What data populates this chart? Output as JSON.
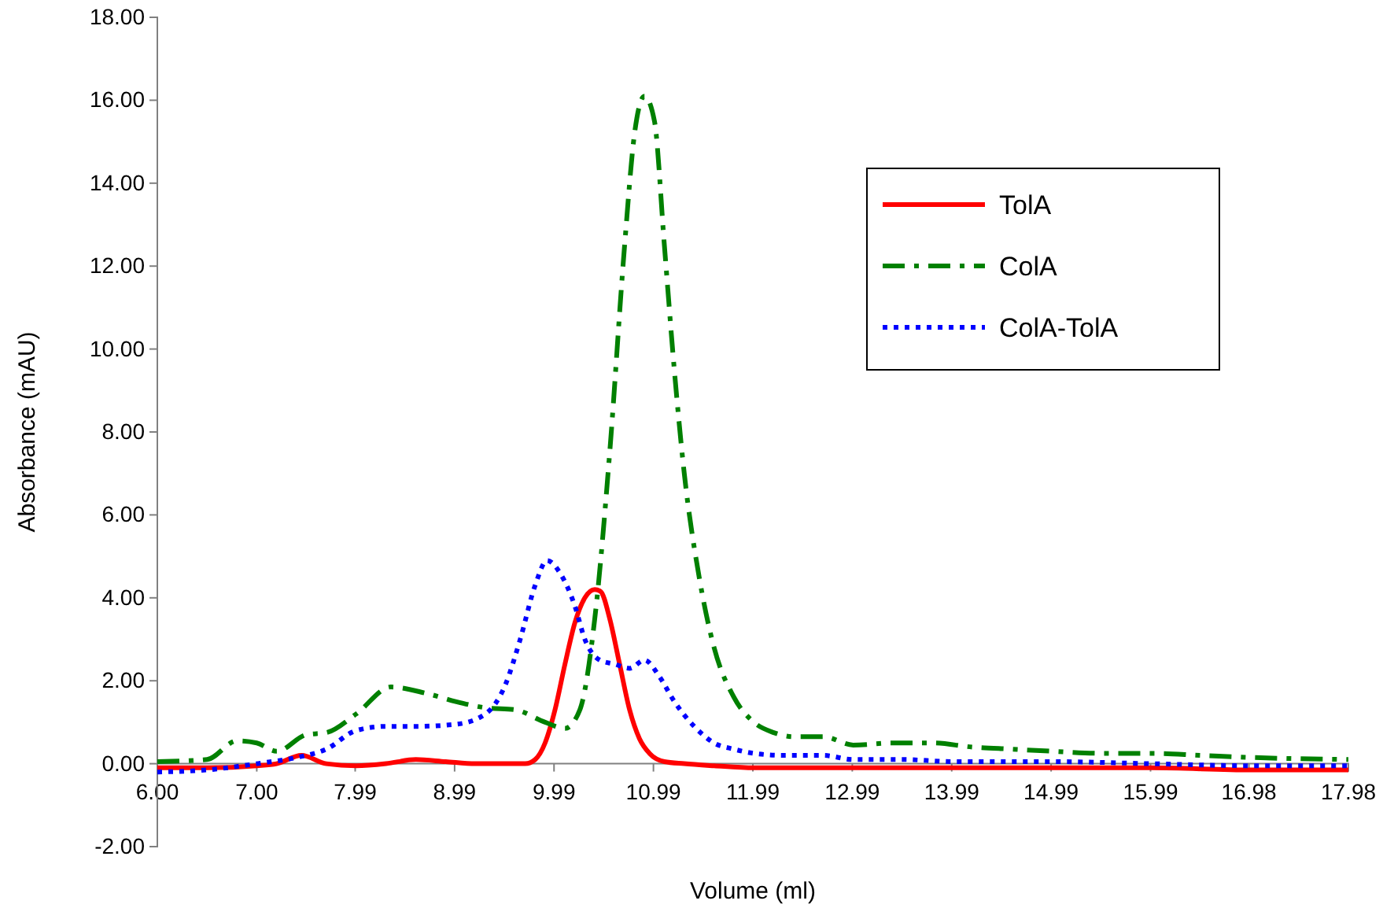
{
  "chart_data": {
    "type": "line",
    "xlabel": "Volume (ml)",
    "ylabel": "Absorbance (mAU)",
    "xlim": [
      6.0,
      17.98
    ],
    "xticks": [
      {
        "value": 6.0,
        "label": "6.00"
      },
      {
        "value": 7.0,
        "label": "7.00"
      },
      {
        "value": 7.99,
        "label": "7.99"
      },
      {
        "value": 8.99,
        "label": "8.99"
      },
      {
        "value": 9.99,
        "label": "9.99"
      },
      {
        "value": 10.99,
        "label": "10.99"
      },
      {
        "value": 11.99,
        "label": "11.99"
      },
      {
        "value": 12.99,
        "label": "12.99"
      },
      {
        "value": 13.99,
        "label": "13.99"
      },
      {
        "value": 14.99,
        "label": "14.99"
      },
      {
        "value": 15.99,
        "label": "15.99"
      },
      {
        "value": 16.98,
        "label": "16.98"
      },
      {
        "value": 17.98,
        "label": "17.98"
      }
    ],
    "ylim": [
      -2,
      18
    ],
    "yticks": [
      {
        "value": -2,
        "label": "-2.00"
      },
      {
        "value": 0,
        "label": "0.00"
      },
      {
        "value": 2,
        "label": "2.00"
      },
      {
        "value": 4,
        "label": "4.00"
      },
      {
        "value": 6,
        "label": "6.00"
      },
      {
        "value": 8,
        "label": "8.00"
      },
      {
        "value": 10,
        "label": "10.00"
      },
      {
        "value": 12,
        "label": "12.00"
      },
      {
        "value": 14,
        "label": "14.00"
      },
      {
        "value": 16,
        "label": "16.00"
      },
      {
        "value": 18,
        "label": "18.00"
      }
    ],
    "grid": false,
    "legend": "top right",
    "marker": "none",
    "series": [
      {
        "name": "TolA",
        "color": "#ff0000",
        "line_style": "solid",
        "x": [
          6.0,
          6.5,
          7.0,
          7.2,
          7.45,
          7.7,
          8.0,
          8.3,
          8.6,
          8.9,
          9.2,
          9.5,
          9.7,
          9.8,
          9.9,
          10.0,
          10.1,
          10.2,
          10.3,
          10.4,
          10.46,
          10.55,
          10.65,
          10.75,
          10.85,
          10.95,
          11.1,
          11.3,
          11.6,
          12.0,
          13.0,
          14.0,
          15.0,
          16.0,
          17.0,
          17.98
        ],
        "values": [
          -0.1,
          -0.1,
          -0.05,
          0.0,
          0.2,
          0.0,
          -0.05,
          0.0,
          0.1,
          0.05,
          0.0,
          0.0,
          0.0,
          0.1,
          0.5,
          1.3,
          2.4,
          3.4,
          4.0,
          4.2,
          4.15,
          3.5,
          2.4,
          1.3,
          0.6,
          0.25,
          0.05,
          0.0,
          -0.05,
          -0.1,
          -0.1,
          -0.1,
          -0.1,
          -0.1,
          -0.15,
          -0.15
        ]
      },
      {
        "name": "ColA",
        "color": "#008000",
        "line_style": "dashdot",
        "x": [
          6.0,
          6.5,
          6.8,
          7.0,
          7.2,
          7.5,
          7.7,
          8.0,
          8.35,
          8.7,
          9.0,
          9.3,
          9.6,
          9.9,
          10.1,
          10.25,
          10.4,
          10.55,
          10.7,
          10.8,
          10.9,
          11.0,
          11.1,
          11.2,
          11.3,
          11.45,
          11.6,
          11.8,
          12.0,
          12.2,
          12.4,
          12.7,
          13.0,
          13.4,
          13.8,
          14.2,
          14.6,
          15.0,
          15.5,
          16.0,
          16.5,
          17.0,
          17.98
        ],
        "values": [
          0.05,
          0.1,
          0.55,
          0.5,
          0.3,
          0.7,
          0.75,
          1.2,
          1.85,
          1.7,
          1.5,
          1.35,
          1.3,
          1.0,
          0.85,
          1.3,
          3.5,
          7.5,
          12.5,
          15.2,
          16.1,
          15.5,
          12.5,
          9.5,
          7.0,
          4.5,
          2.8,
          1.6,
          1.0,
          0.75,
          0.65,
          0.65,
          0.45,
          0.5,
          0.5,
          0.4,
          0.35,
          0.3,
          0.25,
          0.25,
          0.2,
          0.15,
          0.1
        ]
      },
      {
        "name": "ColA-TolA",
        "color": "#0000ff",
        "line_style": "dotted",
        "x": [
          6.0,
          6.5,
          7.0,
          7.4,
          7.7,
          8.0,
          8.3,
          8.6,
          9.0,
          9.3,
          9.5,
          9.65,
          9.8,
          9.92,
          10.05,
          10.2,
          10.3,
          10.45,
          10.6,
          10.75,
          10.9,
          11.05,
          11.2,
          11.4,
          11.6,
          11.8,
          12.0,
          12.3,
          12.7,
          13.0,
          13.5,
          14.0,
          15.0,
          16.0,
          17.0,
          17.98
        ],
        "values": [
          -0.2,
          -0.15,
          0.0,
          0.15,
          0.35,
          0.8,
          0.9,
          0.9,
          0.95,
          1.2,
          1.9,
          3.0,
          4.3,
          4.9,
          4.6,
          3.8,
          3.0,
          2.5,
          2.4,
          2.3,
          2.5,
          2.1,
          1.5,
          0.9,
          0.5,
          0.35,
          0.25,
          0.2,
          0.2,
          0.1,
          0.1,
          0.05,
          0.05,
          0.0,
          -0.05,
          -0.05
        ]
      }
    ]
  }
}
